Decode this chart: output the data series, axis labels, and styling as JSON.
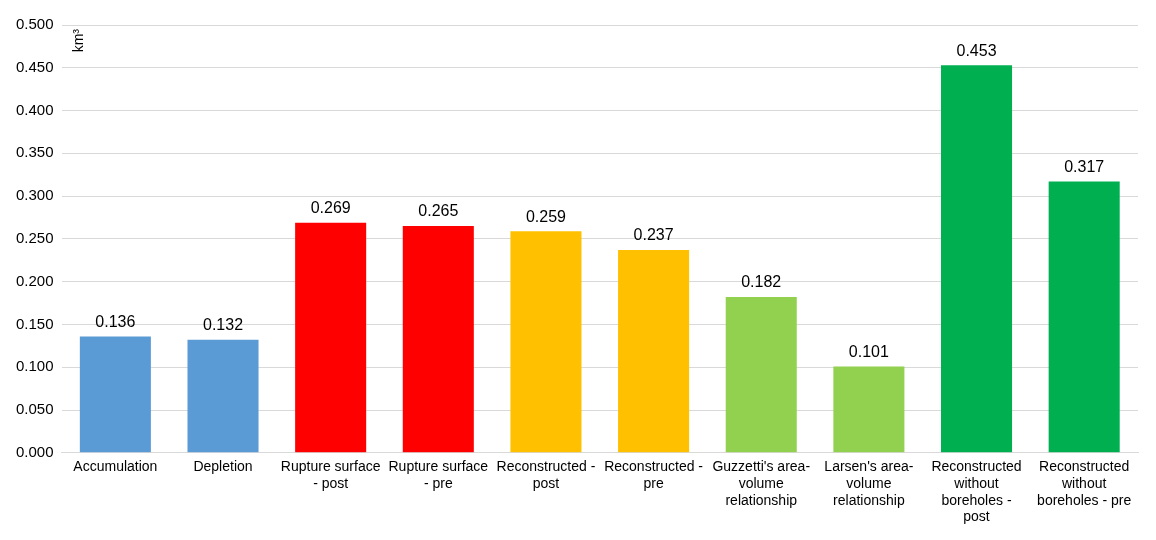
{
  "chart_data": {
    "type": "bar",
    "ylabel": "km³",
    "categories": [
      "Accumulation",
      "Depletion",
      "Rupture surface - post",
      "Rupture surface - pre",
      "Reconstructed - post",
      "Reconstructed - pre",
      "Guzzetti's area-volume relationship",
      "Larsen's area-volume relationship",
      "Reconstructed without boreholes - post",
      "Reconstructed without boreholes - pre"
    ],
    "values": [
      0.136,
      0.132,
      0.269,
      0.265,
      0.259,
      0.237,
      0.182,
      0.101,
      0.453,
      0.317
    ],
    "colors": [
      "#5b9bd5",
      "#5b9bd5",
      "#ff0000",
      "#ff0000",
      "#ffc000",
      "#ffc000",
      "#92d050",
      "#92d050",
      "#00b050",
      "#00b050"
    ],
    "ylim": [
      0,
      0.5
    ],
    "yticks": [
      {
        "value": 0,
        "label": "0.000"
      },
      {
        "value": 0.05,
        "label": "0.050"
      },
      {
        "value": 0.1,
        "label": "0.100"
      },
      {
        "value": 0.15,
        "label": "0.150"
      },
      {
        "value": 0.2,
        "label": "0.200"
      },
      {
        "value": 0.25,
        "label": "0.250"
      },
      {
        "value": 0.3,
        "label": "0.300"
      },
      {
        "value": 0.35,
        "label": "0.350"
      },
      {
        "value": 0.4,
        "label": "0.400"
      },
      {
        "value": 0.45,
        "label": "0.450"
      },
      {
        "value": 0.5,
        "label": "0.500"
      }
    ],
    "grid": "y",
    "data_labels": true,
    "legend": false
  }
}
